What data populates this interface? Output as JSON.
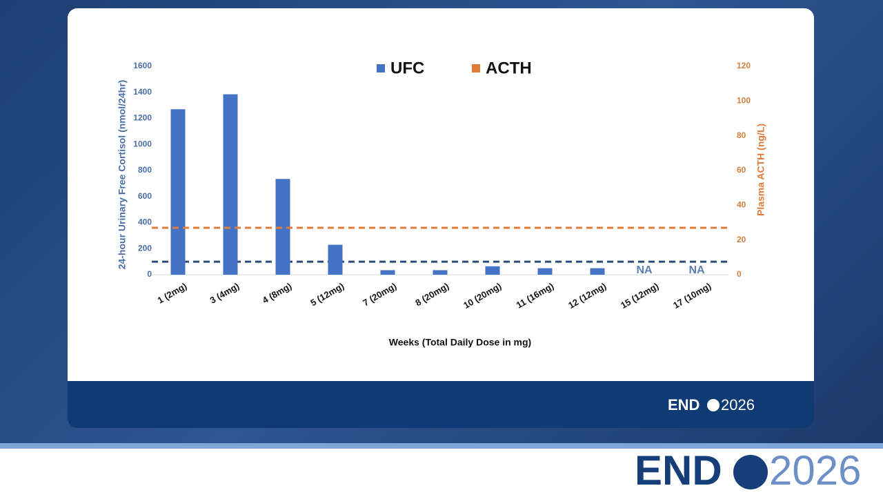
{
  "chart_data": {
    "type": "bar",
    "categories": [
      "1 (2mg)",
      "3 (4mg)",
      "4 (8mg)",
      "5 (12mg)",
      "7 (20mg)",
      "8 (20mg)",
      "10 (20mg)",
      "11 (16mg)",
      "12 (12mg)",
      "15 (12mg)",
      "17 (10mg)"
    ],
    "series": [
      {
        "name": "UFC",
        "color": "#4472c4",
        "values": [
          1270,
          1385,
          735,
          230,
          35,
          35,
          65,
          50,
          50,
          null,
          null
        ],
        "value_labels": [
          null,
          null,
          null,
          null,
          null,
          null,
          null,
          null,
          null,
          "NA",
          "NA"
        ]
      },
      {
        "name": "ACTH",
        "color": "#e07b39",
        "axis": "y2",
        "type": "hline",
        "value": 27
      }
    ],
    "reference_lines": [
      {
        "value": 100,
        "color": "#2f4b7c"
      }
    ],
    "ylabel": "24-hour Urinary Free Cortisol (nmol/24hr)",
    "y2label": "Plasma ACTH (ng/L)",
    "xlabel": "Weeks (Total Daily Dose in mg)",
    "ylim": [
      0,
      1600
    ],
    "yticks": [
      0,
      200,
      400,
      600,
      800,
      1000,
      1200,
      1400,
      1600
    ],
    "y2lim": [
      0,
      120
    ],
    "y2ticks": [
      0,
      20,
      40,
      60,
      80,
      100,
      120
    ],
    "legend": "top"
  },
  "branding": {
    "bold": "END",
    "light": "2026"
  }
}
